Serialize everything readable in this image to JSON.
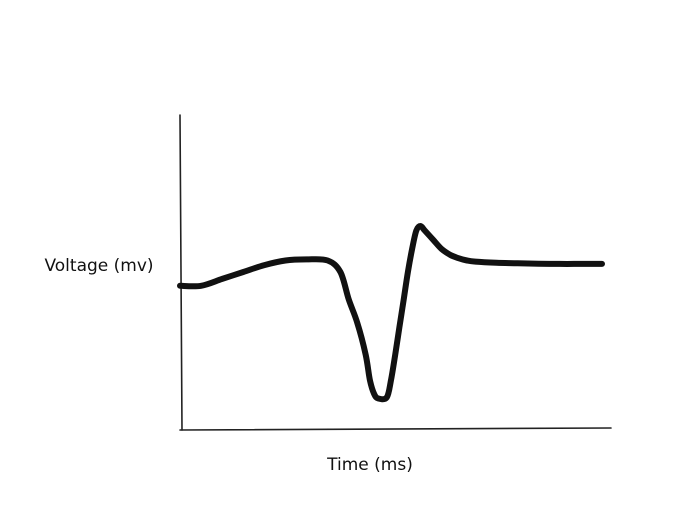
{
  "chart_data": {
    "type": "line",
    "title": "",
    "xlabel": "Time (ms)",
    "ylabel": "Voltage (mv)",
    "xlim": [
      0,
      100
    ],
    "ylim": [
      0,
      100
    ],
    "grid": false,
    "series": [
      {
        "x": [
          0,
          5,
          10,
          15,
          20,
          25,
          30,
          35,
          38,
          40,
          42,
          44,
          45,
          46,
          47,
          49,
          50,
          51,
          52,
          53,
          54,
          55,
          56,
          57,
          58,
          60,
          62,
          64,
          66,
          68,
          70,
          75,
          80,
          85,
          90,
          95,
          100
        ],
        "y": [
          54,
          54,
          57,
          60,
          63,
          65,
          65.5,
          65,
          60,
          48,
          38,
          24,
          13,
          7,
          5,
          5.5,
          13,
          24,
          36,
          48,
          60,
          70,
          78,
          80,
          78,
          74,
          70,
          67.5,
          66,
          65,
          64.5,
          64,
          63.8,
          63.6,
          63.5,
          63.5,
          63.5
        ],
        "color": "#111111"
      }
    ]
  }
}
